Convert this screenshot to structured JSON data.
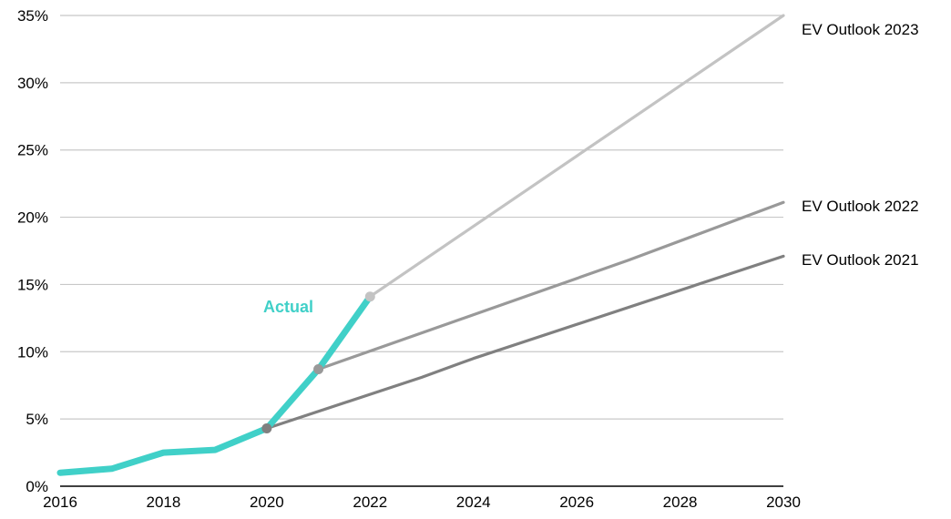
{
  "chart_data": {
    "type": "line",
    "xlim": [
      2016,
      2030
    ],
    "ylim": [
      0,
      35
    ],
    "x_ticks": [
      "2016",
      "2018",
      "2020",
      "2022",
      "2024",
      "2026",
      "2028",
      "2030"
    ],
    "y_ticks": [
      "0%",
      "5%",
      "10%",
      "15%",
      "20%",
      "25%",
      "30%",
      "35%"
    ],
    "grid": true,
    "series": [
      {
        "name": "EV Outlook 2023",
        "color": "#c3c3c3",
        "x": [
          2022,
          2030
        ],
        "values": [
          14.1,
          35.0
        ]
      },
      {
        "name": "EV Outlook 2022",
        "color": "#999999",
        "x": [
          2021,
          2027,
          2030
        ],
        "values": [
          8.7,
          16.8,
          21.1
        ]
      },
      {
        "name": "EV Outlook 2021",
        "color": "#808080",
        "x": [
          2020,
          2023,
          2024,
          2030
        ],
        "values": [
          4.3,
          8.1,
          9.5,
          17.1
        ]
      },
      {
        "name": "Actual",
        "color": "#40d0c8",
        "x": [
          2016,
          2017,
          2018,
          2019,
          2020,
          2021,
          2022
        ],
        "values": [
          1.0,
          1.3,
          2.5,
          2.7,
          4.3,
          8.7,
          14.1
        ]
      }
    ],
    "markers": [
      {
        "x": 2020,
        "value": 4.3,
        "color": "#808080"
      },
      {
        "x": 2021,
        "value": 8.7,
        "color": "#999999"
      },
      {
        "x": 2022,
        "value": 14.1,
        "color": "#c3c3c3"
      }
    ],
    "labels": {
      "actual": "Actual",
      "outlook_2023": "EV Outlook 2023",
      "outlook_2022": "EV Outlook 2022",
      "outlook_2021": "EV Outlook 2021"
    },
    "gridline_color": "#c8c8c8",
    "axis_color": "#000000"
  }
}
